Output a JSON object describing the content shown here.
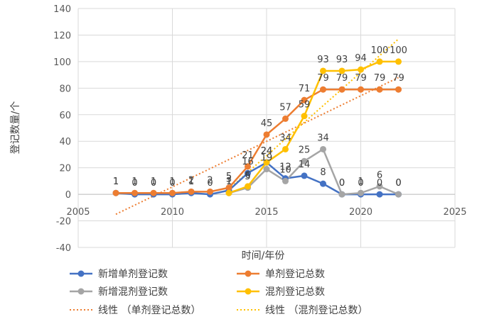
{
  "chart_data": {
    "type": "line",
    "xlabel": "时间/年份",
    "ylabel": "登记数量/个",
    "xlim": [
      2005,
      2025
    ],
    "ylim": [
      -40,
      140
    ],
    "xticks": [
      2005,
      2010,
      2015,
      2020,
      2025
    ],
    "yticks": [
      -40,
      -20,
      0,
      20,
      40,
      60,
      80,
      100,
      120,
      140
    ],
    "grid": "vertical-and-horizontal",
    "legend_position": "bottom",
    "series": [
      {
        "name": "新增单剂登记数",
        "color": "#4472C4",
        "x": [
          2007,
          2008,
          2009,
          2010,
          2011,
          2012,
          2013,
          2014,
          2015,
          2016,
          2017,
          2018,
          2019,
          2020,
          2021,
          2022
        ],
        "values": [
          1,
          0,
          0,
          0,
          1,
          0,
          3,
          16,
          24,
          12,
          14,
          8,
          0,
          0,
          0,
          0
        ],
        "labels": [
          "1",
          "0",
          "0",
          "0",
          "1",
          "0",
          "3",
          "16",
          "24",
          "12",
          "14",
          "8",
          "0",
          "0",
          "0",
          "0"
        ]
      },
      {
        "name": "单剂登记总数",
        "color": "#ED7D31",
        "x": [
          2007,
          2008,
          2009,
          2010,
          2011,
          2012,
          2013,
          2014,
          2015,
          2016,
          2017,
          2018,
          2019,
          2020,
          2021,
          2022
        ],
        "values": [
          1,
          1,
          1,
          1,
          2,
          2,
          5,
          21,
          45,
          57,
          71,
          79,
          79,
          79,
          79,
          79
        ],
        "labels": [
          "1",
          "1",
          "1",
          "1",
          "2",
          "2",
          "5",
          "21",
          "45",
          "57",
          "71",
          "79",
          "79",
          "79",
          "79",
          "79"
        ]
      },
      {
        "name": "新增混剂登记数",
        "color": "#A5A5A5",
        "x": [
          2013,
          2014,
          2015,
          2016,
          2017,
          2018,
          2019,
          2020,
          2021,
          2022
        ],
        "values": [
          1,
          5,
          19,
          10,
          25,
          34,
          0,
          1,
          6,
          0
        ],
        "labels": [
          "1",
          "5",
          "19",
          "10",
          "25",
          "34",
          "0",
          "1",
          "6",
          "0"
        ]
      },
      {
        "name": "混剂登记总数",
        "color": "#FFC000",
        "x": [
          2013,
          2014,
          2015,
          2016,
          2017,
          2018,
          2019,
          2020,
          2021,
          2022
        ],
        "values": [
          1,
          6,
          24,
          34,
          59,
          93,
          93,
          94,
          100,
          100
        ],
        "labels": [
          "1",
          "6",
          "24",
          "34",
          "59",
          "93",
          "93",
          "94",
          "100",
          "100"
        ]
      }
    ],
    "trendlines": [
      {
        "name": "线性（单剂登记总数）",
        "color": "#ED7D31",
        "x": [
          2007,
          2022
        ],
        "values": [
          -15,
          88
        ]
      },
      {
        "name": "线性（混剂登记总数）",
        "color": "#FFC000",
        "x": [
          2013,
          2022
        ],
        "values": [
          4,
          117
        ]
      }
    ],
    "legend": [
      "新增单剂登记数",
      "单剂登记总数",
      "新增混剂登记数",
      "混剂登记总数",
      "线性 （单剂登记总数）",
      "线性 （混剂登记总数）"
    ]
  }
}
